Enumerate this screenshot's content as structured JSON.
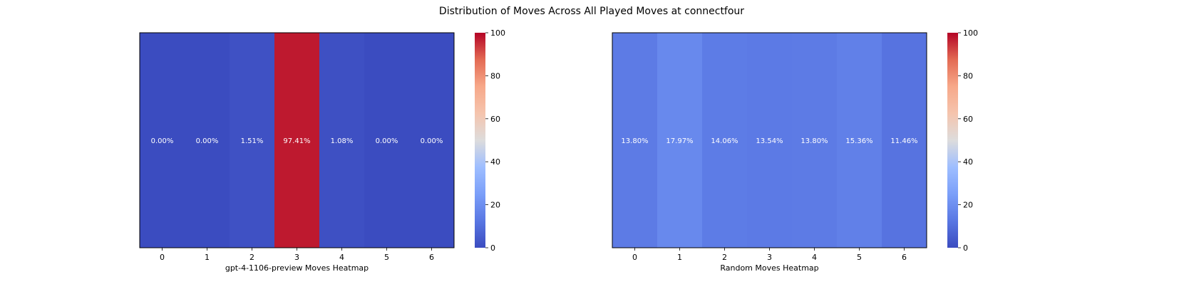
{
  "title": "Distribution of Moves Across All Played Moves at connectfour",
  "colorbar": {
    "ticks": [
      "0",
      "20",
      "40",
      "60",
      "80",
      "100"
    ],
    "range": [
      0,
      100
    ],
    "colormap": "coolwarm"
  },
  "chart_data": [
    {
      "type": "heatmap",
      "xlabel": "gpt-4-1106-preview Moves Heatmap",
      "categories": [
        "0",
        "1",
        "2",
        "3",
        "4",
        "5",
        "6"
      ],
      "values": [
        0.0,
        0.0,
        1.51,
        97.41,
        1.08,
        0.0,
        0.0
      ],
      "labels": [
        "0.00%",
        "0.00%",
        "1.51%",
        "97.41%",
        "1.08%",
        "0.00%",
        "0.00%"
      ],
      "vmin": 0,
      "vmax": 100
    },
    {
      "type": "heatmap",
      "xlabel": "Random Moves Heatmap",
      "categories": [
        "0",
        "1",
        "2",
        "3",
        "4",
        "5",
        "6"
      ],
      "values": [
        13.8,
        17.97,
        14.06,
        13.54,
        13.8,
        15.36,
        11.46
      ],
      "labels": [
        "13.80%",
        "17.97%",
        "14.06%",
        "13.54%",
        "13.80%",
        "15.36%",
        "11.46%"
      ],
      "vmin": 0,
      "vmax": 100
    }
  ]
}
